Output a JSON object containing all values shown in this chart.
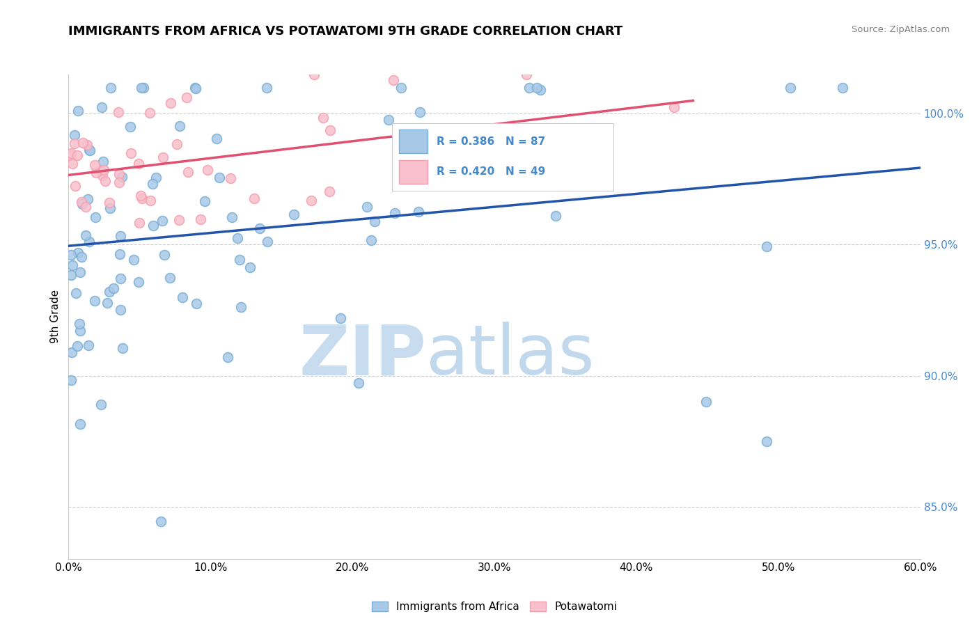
{
  "title": "IMMIGRANTS FROM AFRICA VS POTAWATOMI 9TH GRADE CORRELATION CHART",
  "source_text": "Source: ZipAtlas.com",
  "ylabel": "9th Grade",
  "r_blue": "0.386",
  "n_blue": "87",
  "r_pink": "0.420",
  "n_pink": "49",
  "blue_color": "#7BAFD4",
  "pink_color": "#F4A0B0",
  "blue_fill": "#A8C8E8",
  "pink_fill": "#F8C0CC",
  "blue_line_color": "#2255AA",
  "pink_line_color": "#E05070",
  "ytick_color": "#4488CC",
  "watermark_zip": "ZIP",
  "watermark_atlas": "atlas",
  "watermark_color": "#C8DCF0",
  "legend_label_blue": "Immigrants from Africa",
  "legend_label_pink": "Potawatomi",
  "xlim": [
    0,
    60
  ],
  "ylim": [
    83,
    101.5
  ],
  "yticks": [
    85,
    90,
    95,
    100
  ],
  "xticks": [
    0,
    10,
    20,
    30,
    40,
    50,
    60
  ]
}
